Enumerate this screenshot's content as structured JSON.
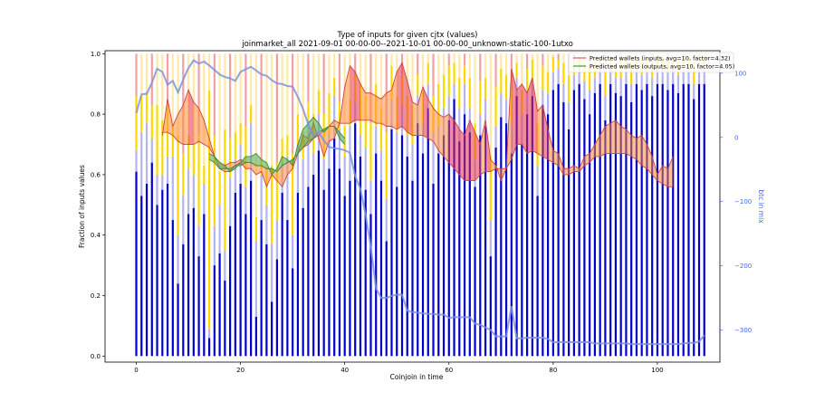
{
  "chart_data": {
    "type": "bar",
    "title": "Type of inputs for given cjtx (values)",
    "subtitle": "joinmarket_all 2021-09-01 00-00-00--2021-10-01 00-00-00_unknown-static-100-1utxo",
    "xlabel": "Coinjoin in time",
    "ylabel": "Fraction of inputs values",
    "y2label": "btc in mix",
    "xlim": [
      -6,
      112
    ],
    "ylim": [
      -0.02,
      1.01
    ],
    "y2lim": [
      -350,
      135
    ],
    "xticks": [
      0,
      20,
      40,
      60,
      80,
      100
    ],
    "yticks": [
      0.0,
      0.2,
      0.4,
      0.6,
      0.8,
      1.0
    ],
    "y2ticks": [
      -300,
      -200,
      -100,
      0,
      100
    ],
    "legend_position": "top-right",
    "legend": [
      {
        "label": "Predicted wallets (inputs, avg=10, factor=4.32)",
        "color": "#e8584f"
      },
      {
        "label": "Predicted wallets (outputs, avg=10, factor=4.05)",
        "color": "#3a9a3a"
      }
    ],
    "colors": {
      "bar_blue": "#0000cd",
      "bar_lightblue": "#b4b4f0",
      "bar_yellow": "#ffd700",
      "bar_lightyellow": "#ffe9a8",
      "bar_pink": "#f2a0a0",
      "line_blue": "#7b93dd",
      "fill_red": "#e8304a",
      "fill_orange": "#ff8c3a",
      "fill_green": "#4aa84a"
    },
    "bars": [
      [
        0.61,
        0.68,
        0.86,
        1.0
      ],
      [
        0.53,
        0.74,
        0.86,
        1.0
      ],
      [
        0.57,
        0.77,
        0.87,
        1.0
      ],
      [
        0.64,
        0.72,
        0.83,
        1.0
      ],
      [
        0.5,
        0.6,
        0.83,
        1.0
      ],
      [
        0.55,
        0.6,
        0.78,
        1.0
      ],
      [
        0.57,
        0.66,
        0.83,
        1.0
      ],
      [
        0.45,
        0.66,
        0.76,
        1.0
      ],
      [
        0.24,
        0.4,
        0.73,
        1.0
      ],
      [
        0.37,
        0.53,
        0.67,
        1.0
      ],
      [
        0.47,
        0.62,
        0.73,
        1.0
      ],
      [
        0.49,
        0.6,
        0.7,
        1.0
      ],
      [
        0.33,
        0.43,
        0.73,
        1.0
      ],
      [
        0.47,
        0.57,
        0.63,
        1.0
      ],
      [
        0.06,
        0.09,
        0.88,
        1.0
      ],
      [
        0.3,
        0.43,
        0.73,
        1.0
      ],
      [
        0.34,
        0.5,
        0.61,
        1.0
      ],
      [
        0.25,
        0.35,
        0.75,
        1.0
      ],
      [
        0.43,
        0.59,
        0.72,
        1.0
      ],
      [
        0.54,
        0.65,
        0.74,
        1.0
      ],
      [
        0.57,
        0.7,
        0.77,
        1.0
      ],
      [
        0.47,
        0.56,
        0.76,
        1.0
      ],
      [
        0.58,
        0.77,
        0.83,
        1.0
      ],
      [
        0.13,
        0.38,
        0.46,
        1.0
      ],
      [
        0.45,
        0.6,
        0.65,
        1.0
      ],
      [
        0.37,
        0.5,
        0.62,
        1.0
      ],
      [
        0.18,
        0.37,
        0.63,
        1.0
      ],
      [
        0.32,
        0.45,
        0.64,
        1.0
      ],
      [
        0.54,
        0.64,
        0.72,
        1.0
      ],
      [
        0.45,
        0.66,
        0.73,
        1.0
      ],
      [
        0.29,
        0.4,
        0.67,
        1.0
      ],
      [
        0.54,
        0.7,
        0.8,
        1.0
      ],
      [
        0.49,
        0.65,
        0.74,
        1.0
      ],
      [
        0.56,
        0.78,
        0.84,
        1.0
      ],
      [
        0.6,
        0.67,
        0.8,
        1.0
      ],
      [
        0.68,
        0.8,
        0.88,
        1.0
      ],
      [
        0.55,
        0.65,
        0.8,
        1.0
      ],
      [
        0.62,
        0.73,
        0.87,
        1.0
      ],
      [
        0.72,
        0.86,
        0.92,
        1.0
      ],
      [
        0.62,
        0.75,
        0.84,
        1.0
      ],
      [
        0.53,
        0.66,
        0.76,
        1.0
      ],
      [
        0.58,
        0.76,
        0.85,
        1.0
      ],
      [
        0.77,
        0.84,
        0.93,
        1.0
      ],
      [
        0.66,
        0.73,
        0.9,
        1.0
      ],
      [
        0.55,
        0.69,
        0.86,
        1.0
      ],
      [
        0.47,
        0.58,
        0.77,
        1.0
      ],
      [
        0.67,
        0.76,
        0.9,
        1.0
      ],
      [
        0.58,
        0.68,
        0.82,
        1.0
      ],
      [
        0.38,
        0.52,
        0.74,
        1.0
      ],
      [
        0.75,
        0.85,
        0.96,
        1.0
      ],
      [
        0.56,
        0.74,
        0.86,
        1.0
      ],
      [
        0.73,
        0.83,
        0.93,
        1.0
      ],
      [
        0.66,
        0.73,
        0.86,
        1.0
      ],
      [
        0.58,
        0.7,
        0.83,
        1.0
      ],
      [
        0.77,
        0.86,
        0.93,
        1.0
      ],
      [
        0.67,
        0.77,
        0.88,
        1.0
      ],
      [
        0.82,
        0.9,
        0.97,
        1.0
      ],
      [
        0.57,
        0.74,
        0.86,
        1.0
      ],
      [
        0.67,
        0.76,
        0.9,
        1.0
      ],
      [
        0.73,
        0.82,
        0.93,
        1.0
      ],
      [
        0.78,
        0.86,
        0.96,
        1.0
      ],
      [
        0.85,
        0.9,
        0.97,
        1.0
      ],
      [
        0.71,
        0.82,
        0.92,
        1.0
      ],
      [
        0.8,
        0.9,
        0.96,
        1.0
      ],
      [
        0.74,
        0.82,
        0.92,
        1.0
      ],
      [
        0.56,
        0.65,
        0.77,
        1.0
      ],
      [
        0.73,
        0.8,
        0.91,
        1.0
      ],
      [
        0.76,
        0.85,
        0.92,
        1.0
      ],
      [
        0.33,
        0.45,
        0.66,
        1.0
      ],
      [
        0.69,
        0.76,
        0.89,
        1.0
      ],
      [
        0.79,
        0.87,
        0.95,
        1.0
      ],
      [
        0.77,
        0.85,
        0.93,
        1.0
      ],
      [
        0.67,
        0.77,
        0.88,
        1.0
      ],
      [
        0.86,
        0.92,
        0.97,
        1.0
      ],
      [
        0.7,
        0.8,
        0.88,
        1.0
      ],
      [
        0.8,
        0.88,
        0.95,
        1.0
      ],
      [
        0.86,
        0.91,
        0.98,
        1.0
      ],
      [
        0.53,
        0.63,
        0.77,
        1.0
      ],
      [
        0.83,
        0.88,
        0.96,
        1.0
      ],
      [
        0.8,
        0.87,
        0.94,
        1.0
      ],
      [
        0.88,
        0.94,
        0.99,
        1.0
      ],
      [
        0.9,
        0.95,
        0.98,
        1.0
      ],
      [
        0.84,
        0.9,
        0.97,
        1.0
      ],
      [
        0.75,
        0.84,
        0.93,
        1.0
      ],
      [
        0.88,
        0.93,
        0.98,
        1.0
      ],
      [
        0.9,
        0.95,
        0.99,
        1.0
      ],
      [
        0.85,
        0.91,
        0.97,
        1.0
      ],
      [
        0.8,
        0.88,
        0.96,
        1.0
      ],
      [
        0.87,
        0.92,
        0.97,
        1.0
      ],
      [
        0.9,
        0.95,
        0.99,
        1.0
      ],
      [
        0.78,
        0.86,
        0.94,
        1.0
      ],
      [
        0.9,
        0.95,
        0.99,
        1.0
      ],
      [
        0.87,
        0.92,
        0.97,
        1.0
      ],
      [
        0.86,
        0.92,
        0.98,
        1.0
      ],
      [
        0.9,
        0.95,
        0.99,
        1.0
      ],
      [
        0.84,
        0.9,
        0.96,
        1.0
      ],
      [
        0.9,
        0.95,
        0.99,
        1.0
      ],
      [
        0.88,
        0.93,
        0.98,
        1.0
      ],
      [
        0.9,
        0.95,
        0.99,
        1.0
      ],
      [
        0.86,
        0.92,
        0.97,
        1.0
      ],
      [
        0.9,
        0.95,
        0.99,
        1.0
      ],
      [
        0.9,
        0.95,
        0.99,
        1.0
      ],
      [
        0.88,
        0.94,
        0.98,
        1.0
      ],
      [
        0.9,
        0.95,
        0.99,
        1.0
      ],
      [
        0.87,
        0.93,
        0.98,
        1.0
      ],
      [
        0.9,
        0.95,
        0.99,
        1.0
      ],
      [
        0.9,
        0.95,
        0.99,
        1.0
      ],
      [
        0.85,
        0.9,
        0.96,
        1.0
      ],
      [
        0.9,
        0.96,
        0.99,
        1.0
      ],
      [
        0.9,
        0.95,
        0.99,
        1.0
      ]
    ],
    "series_inputs": {
      "x": [
        5,
        6,
        7,
        8,
        9,
        10,
        11,
        12,
        13,
        14,
        15,
        16,
        17,
        18,
        19,
        20,
        21,
        22,
        23,
        24,
        25,
        26,
        27,
        28,
        29,
        30,
        31,
        32,
        33,
        34,
        35,
        36,
        37,
        38,
        39,
        40,
        41,
        42,
        43,
        44,
        45,
        46,
        47,
        48,
        49,
        50,
        51,
        52,
        53,
        54,
        55,
        56,
        57,
        58,
        59,
        60,
        61,
        62,
        63,
        64,
        65,
        66,
        67,
        68,
        69,
        70,
        71,
        72,
        73,
        74,
        75,
        76,
        77,
        78,
        79,
        80,
        81,
        82,
        83,
        84,
        85,
        86,
        87,
        88,
        89,
        90,
        91,
        92,
        93,
        94,
        95,
        96,
        97,
        98,
        99,
        100,
        101,
        102,
        103
      ],
      "y": [
        0.73,
        0.85,
        0.76,
        0.8,
        0.83,
        0.88,
        0.84,
        0.82,
        0.78,
        0.72,
        0.66,
        0.62,
        0.61,
        0.61,
        0.63,
        0.64,
        0.62,
        0.62,
        0.6,
        0.61,
        0.56,
        0.6,
        0.58,
        0.56,
        0.6,
        0.62,
        0.67,
        0.73,
        0.72,
        0.77,
        0.72,
        0.66,
        0.71,
        0.72,
        0.77,
        0.89,
        0.96,
        0.94,
        0.9,
        0.87,
        0.87,
        0.86,
        0.85,
        0.87,
        0.88,
        0.94,
        0.97,
        0.91,
        0.84,
        0.83,
        0.89,
        0.85,
        0.82,
        0.8,
        0.79,
        0.8,
        0.78,
        0.75,
        0.73,
        0.78,
        0.74,
        0.7,
        0.78,
        0.65,
        0.63,
        0.58,
        0.62,
        0.95,
        0.88,
        0.9,
        0.87,
        0.92,
        0.81,
        0.83,
        0.75,
        0.68,
        0.67,
        0.62,
        0.62,
        0.63,
        0.62,
        0.66,
        0.67,
        0.7,
        0.73,
        0.76,
        0.77,
        0.78,
        0.76,
        0.75,
        0.73,
        0.72,
        0.73,
        0.7,
        0.66,
        0.6,
        0.63,
        0.62,
        0.66
      ],
      "y2": [
        0.74,
        0.74,
        0.73,
        0.71,
        0.7,
        0.7,
        0.7,
        0.71,
        0.7,
        0.69,
        0.66,
        0.64,
        0.63,
        0.64,
        0.64,
        0.65,
        0.64,
        0.64,
        0.63,
        0.63,
        0.62,
        0.62,
        0.61,
        0.63,
        0.64,
        0.65,
        0.67,
        0.69,
        0.7,
        0.72,
        0.73,
        0.75,
        0.76,
        0.78,
        0.77,
        0.77,
        0.77,
        0.78,
        0.78,
        0.78,
        0.78,
        0.77,
        0.77,
        0.76,
        0.76,
        0.75,
        0.76,
        0.74,
        0.73,
        0.73,
        0.73,
        0.72,
        0.71,
        0.68,
        0.66,
        0.64,
        0.62,
        0.6,
        0.58,
        0.58,
        0.58,
        0.6,
        0.61,
        0.61,
        0.62,
        0.62,
        0.62,
        0.65,
        0.7,
        0.7,
        0.67,
        0.68,
        0.67,
        0.66,
        0.65,
        0.64,
        0.63,
        0.6,
        0.6,
        0.61,
        0.61,
        0.63,
        0.64,
        0.66,
        0.66,
        0.67,
        0.67,
        0.67,
        0.67,
        0.67,
        0.66,
        0.65,
        0.63,
        0.62,
        0.6,
        0.58,
        0.57,
        0.56,
        0.56
      ]
    },
    "series_outputs": {
      "x": [
        14,
        15,
        16,
        17,
        18,
        19,
        20,
        21,
        22,
        23,
        24,
        25,
        26,
        27,
        28,
        29,
        30,
        31,
        32,
        33,
        34,
        35,
        36,
        37,
        38,
        39,
        40
      ],
      "y": [
        0.67,
        0.66,
        0.64,
        0.63,
        0.61,
        0.62,
        0.64,
        0.66,
        0.66,
        0.67,
        0.65,
        0.64,
        0.6,
        0.62,
        0.66,
        0.65,
        0.63,
        0.7,
        0.75,
        0.77,
        0.79,
        0.77,
        0.74,
        0.76,
        0.76,
        0.72,
        0.7
      ],
      "y2": [
        0.65,
        0.64,
        0.62,
        0.62,
        0.62,
        0.63,
        0.63,
        0.64,
        0.64,
        0.63,
        0.63,
        0.62,
        0.62,
        0.61,
        0.63,
        0.64,
        0.65,
        0.67,
        0.69,
        0.71,
        0.72,
        0.74,
        0.75,
        0.76,
        0.76,
        0.74,
        0.72
      ]
    },
    "btc_in_mix": {
      "x": [
        0,
        1,
        2,
        3,
        4,
        5,
        6,
        7,
        8,
        9,
        10,
        11,
        12,
        13,
        14,
        15,
        16,
        17,
        18,
        19,
        20,
        21,
        22,
        23,
        24,
        25,
        26,
        27,
        28,
        29,
        30,
        31,
        32,
        33,
        34,
        35,
        36,
        37,
        38,
        39,
        40,
        41,
        42,
        43,
        44,
        45,
        46,
        47,
        48,
        49,
        50,
        51,
        52,
        53,
        54,
        55,
        56,
        57,
        58,
        59,
        60,
        61,
        62,
        63,
        64,
        65,
        66,
        67,
        68,
        69,
        70,
        71,
        72,
        73,
        74,
        75,
        76,
        77,
        78,
        79,
        80,
        81,
        82,
        83,
        84,
        85,
        86,
        87,
        88,
        89,
        90,
        91,
        92,
        93,
        94,
        95,
        96,
        97,
        98,
        99,
        100,
        101,
        102,
        103,
        104,
        105,
        106,
        107,
        108,
        109
      ],
      "y": [
        38,
        67,
        68,
        85,
        107,
        102,
        82,
        88,
        70,
        90,
        108,
        120,
        115,
        118,
        112,
        105,
        98,
        94,
        92,
        88,
        102,
        106,
        110,
        104,
        98,
        96,
        89,
        84,
        83,
        80,
        79,
        63,
        44,
        20,
        2,
        8,
        -5,
        -15,
        -17,
        -18,
        -20,
        -24,
        -60,
        -80,
        -120,
        -170,
        -235,
        -250,
        -250,
        -247,
        -245,
        -245,
        -270,
        -272,
        -273,
        -274,
        -275,
        -275,
        -276,
        -276,
        -281,
        -280,
        -280,
        -280,
        -280,
        -290,
        -292,
        -296,
        -300,
        -310,
        -310,
        -310,
        -263,
        -313,
        -313,
        -312,
        -312,
        -312,
        -312,
        -314,
        -319,
        -319,
        -319,
        -319,
        -319,
        -319,
        -319,
        -319,
        -321,
        -321,
        -321,
        -321,
        -321,
        -321,
        -321,
        -322,
        -322,
        -322,
        -322,
        -322,
        -322,
        -322,
        -322,
        -322,
        -322,
        -321,
        -320,
        -320,
        -318,
        -308
      ]
    }
  }
}
